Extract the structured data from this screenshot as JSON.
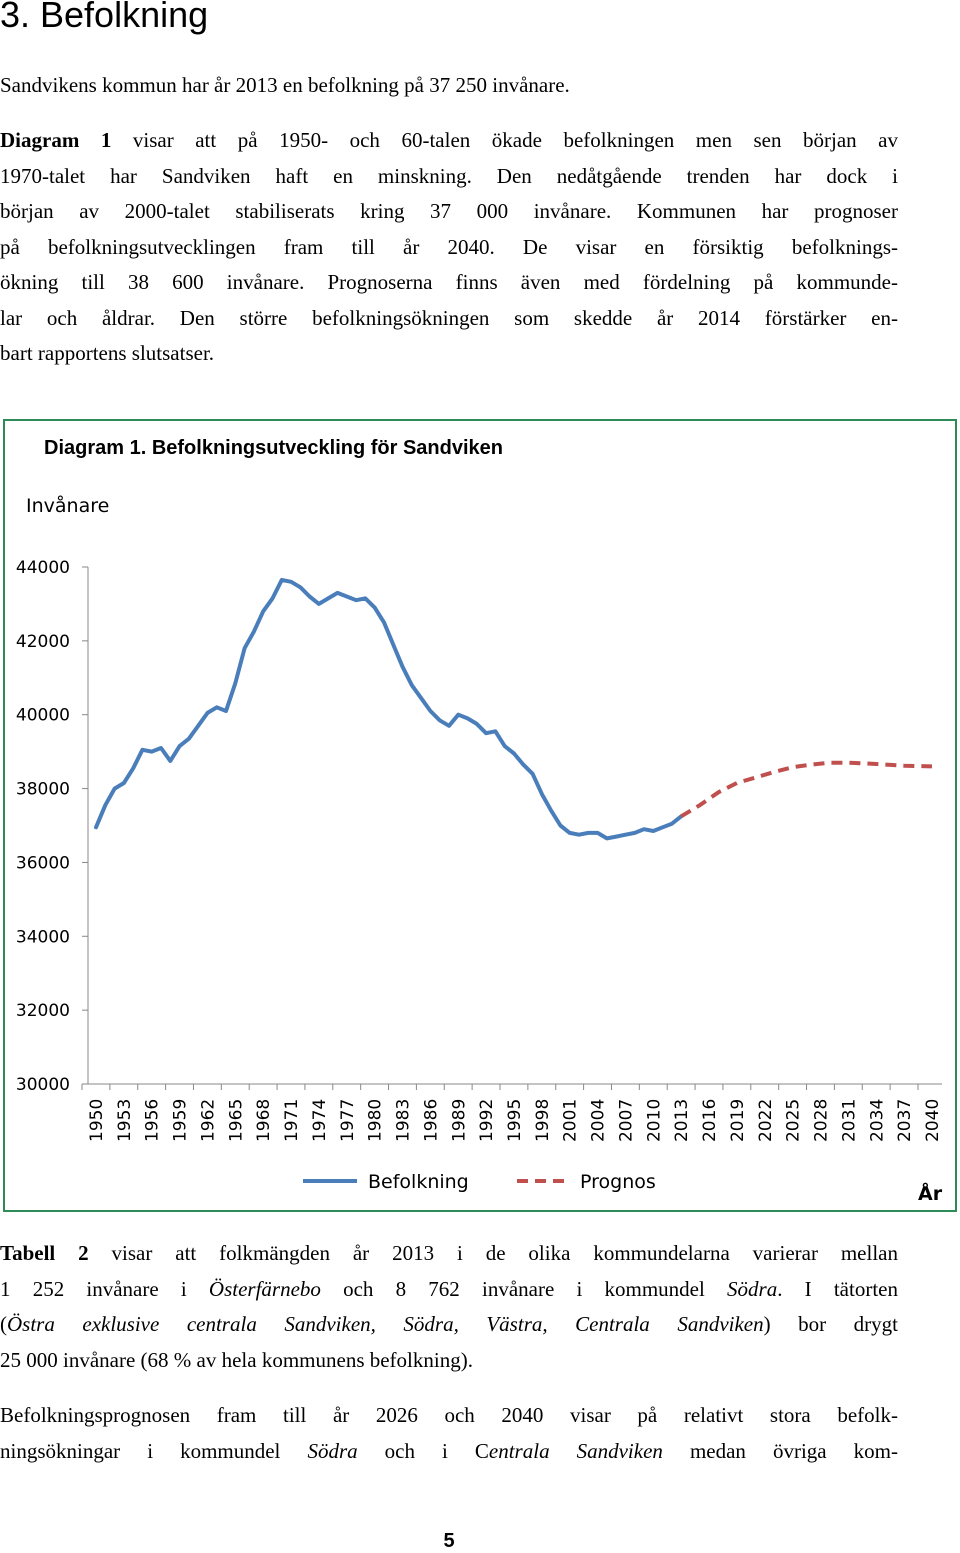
{
  "heading": "3. Befolkning",
  "para1": "Sandvikens kommun har år 2013 en befolkning på 37 250 invånare.",
  "para2": {
    "lead": "Diagram 1",
    "lines": [
      " visar att på 1950- och 60-talen ökade befolkningen men sen början av",
      "1970-talet har Sandviken haft en minskning. Den nedåtgående trenden har dock i",
      "början av 2000-talet stabiliserats kring 37 000 invånare. Kommunen har prognoser",
      "på befolkningsutvecklingen fram till år 2040. De visar en försiktig befolknings-",
      "ökning till 38 600 invånare. Prognoserna finns även med fördelning på kommunde-",
      "lar och åldrar. Den större befolkningsökningen som skedde år 2014 förstärker en-",
      "bart rapportens slutsatser."
    ]
  },
  "chart_data": {
    "type": "line",
    "title": "Diagram 1. Befolkningsutveckling för Sandviken",
    "ylabel": "Invånare",
    "xlabel": "År",
    "ylim": [
      30000,
      44000
    ],
    "yticks": [
      44000,
      42000,
      40000,
      38000,
      36000,
      34000,
      32000,
      30000
    ],
    "xticks": [
      "1950",
      "1953",
      "1956",
      "1959",
      "1962",
      "1965",
      "1968",
      "1971",
      "1974",
      "1977",
      "1980",
      "1983",
      "1986",
      "1989",
      "1992",
      "1995",
      "1998",
      "2001",
      "2004",
      "2007",
      "2010",
      "2013",
      "2016",
      "2019",
      "2022",
      "2025",
      "2028",
      "2031",
      "2034",
      "2037",
      "2040"
    ],
    "x_range": [
      1950,
      2040
    ],
    "grid": false,
    "legend_position": "bottom",
    "series": [
      {
        "name": "Befolkning",
        "color": "#4a7ebb",
        "style": "solid",
        "x": [
          1950,
          1951,
          1952,
          1953,
          1954,
          1955,
          1956,
          1957,
          1958,
          1959,
          1960,
          1961,
          1962,
          1963,
          1964,
          1965,
          1966,
          1967,
          1968,
          1969,
          1970,
          1971,
          1972,
          1973,
          1974,
          1975,
          1976,
          1977,
          1978,
          1979,
          1980,
          1981,
          1982,
          1983,
          1984,
          1985,
          1986,
          1987,
          1988,
          1989,
          1990,
          1991,
          1992,
          1993,
          1994,
          1995,
          1996,
          1997,
          1998,
          1999,
          2000,
          2001,
          2002,
          2003,
          2004,
          2005,
          2006,
          2007,
          2008,
          2009,
          2010,
          2011,
          2012,
          2013
        ],
        "y": [
          36950,
          37550,
          38000,
          38150,
          38550,
          39050,
          39000,
          39100,
          38750,
          39150,
          39350,
          39700,
          40050,
          40200,
          40100,
          40850,
          41800,
          42250,
          42800,
          43150,
          43650,
          43600,
          43450,
          43200,
          43000,
          43150,
          43300,
          43200,
          43100,
          43150,
          42900,
          42500,
          41900,
          41300,
          40800,
          40450,
          40100,
          39850,
          39700,
          40000,
          39900,
          39750,
          39500,
          39550,
          39150,
          38950,
          38650,
          38400,
          37850,
          37400,
          37000,
          36800,
          36750,
          36800,
          36800,
          36650,
          36700,
          36750,
          36800,
          36900,
          36850,
          36950,
          37050,
          37250
        ]
      },
      {
        "name": "Prognos",
        "color": "#c0504d",
        "style": "dashed",
        "x": [
          2013,
          2015,
          2017,
          2019,
          2021,
          2023,
          2025,
          2027,
          2029,
          2031,
          2033,
          2035,
          2037,
          2040
        ],
        "y": [
          37250,
          37550,
          37900,
          38150,
          38300,
          38450,
          38580,
          38650,
          38700,
          38700,
          38680,
          38650,
          38620,
          38600
        ]
      }
    ]
  },
  "para3": {
    "l1": [
      {
        "t": "Tabell 2",
        "b": true
      },
      {
        "t": " visar att folkmängden år 2013 i de olika kommundelarna varierar mellan"
      }
    ],
    "l2": [
      {
        "t": "1 252 invånare i "
      },
      {
        "t": "Österfärnebo",
        "i": true
      },
      {
        "t": " och 8 762 invånare i kommundel "
      },
      {
        "t": "Södra",
        "i": true
      },
      {
        "t": ". I tätorten"
      }
    ],
    "l3": [
      {
        "t": "("
      },
      {
        "t": "Östra exklusive centrala Sandviken, Södra, Västra, Centrala Sandviken",
        "i": true
      },
      {
        "t": ") bor drygt"
      }
    ],
    "l4": [
      {
        "t": "25 000 invånare (68 % av hela kommunens befolkning)."
      }
    ]
  },
  "para4": {
    "l1": [
      {
        "t": "Befolkningsprognosen fram till år 2026 och 2040 visar på relativt stora befolk-"
      }
    ],
    "l2": [
      {
        "t": "ningsökningar i kommundel "
      },
      {
        "t": "Södra",
        "i": true
      },
      {
        "t": " och i C"
      },
      {
        "t": "entrala Sandviken",
        "i": true
      },
      {
        "t": " medan övriga kom-"
      }
    ]
  },
  "page_number": "5"
}
